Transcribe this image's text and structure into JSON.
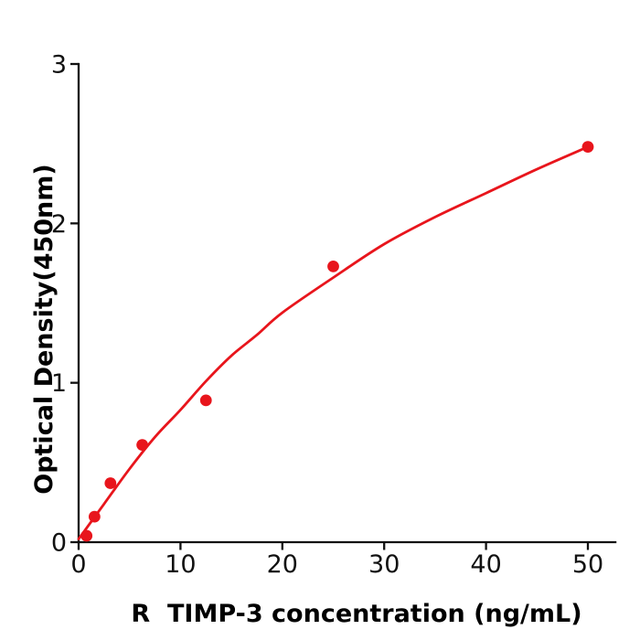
{
  "chart_data": {
    "type": "scatter",
    "title": "",
    "xlabel": "R  TIMP-3 concentration (ng/mL)",
    "ylabel": "Optical Density(450nm)",
    "xlim": [
      0,
      52.7
    ],
    "ylim": [
      0,
      3
    ],
    "x_ticks": [
      0,
      10,
      20,
      30,
      40,
      50
    ],
    "y_ticks": [
      0,
      1,
      2,
      3
    ],
    "grid": false,
    "legend": "none",
    "colors": {
      "points": "#e8151c",
      "curve": "#e8151c",
      "axes": "#111111",
      "background": "#ffffff"
    },
    "points": [
      [
        0.78,
        0.04
      ],
      [
        1.56,
        0.16
      ],
      [
        3.125,
        0.37
      ],
      [
        6.25,
        0.61
      ],
      [
        12.5,
        0.89
      ],
      [
        25,
        1.73
      ],
      [
        50,
        2.48
      ]
    ],
    "fit_curve": [
      [
        0,
        0.02
      ],
      [
        2.5,
        0.24
      ],
      [
        5,
        0.46
      ],
      [
        7.5,
        0.66
      ],
      [
        10,
        0.83
      ],
      [
        12.5,
        1.01
      ],
      [
        15,
        1.17
      ],
      [
        17.5,
        1.3
      ],
      [
        20,
        1.44
      ],
      [
        25,
        1.66
      ],
      [
        30,
        1.87
      ],
      [
        35,
        2.04
      ],
      [
        40,
        2.19
      ],
      [
        45,
        2.34
      ],
      [
        50,
        2.48
      ]
    ]
  }
}
